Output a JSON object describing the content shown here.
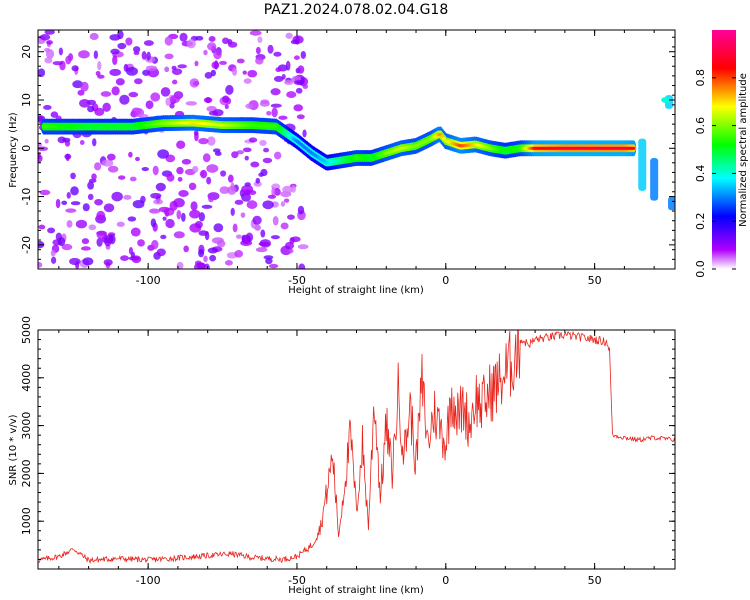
{
  "title": "PAZ1.2024.078.02.04.G18",
  "chart_data": [
    {
      "type": "heatmap",
      "xlabel": "Height of straight line (km)",
      "ylabel": "Frequency (Hz)",
      "xlim": [
        -137,
        77
      ],
      "ylim": [
        -25,
        24.5
      ],
      "xticks": [
        -100,
        -50,
        0,
        50
      ],
      "yticks": [
        -20,
        -10,
        0,
        10,
        20
      ],
      "colorbar": {
        "label": "Normalized spectral amplitude",
        "range": [
          0,
          1
        ],
        "ticks": [
          "0.0",
          "0.2",
          "0.4",
          "0.6",
          "0.8"
        ],
        "colormap": [
          "#ffffff",
          "#b000ff",
          "#0000ff",
          "#00ffff",
          "#00ff00",
          "#ffff00",
          "#ff0000",
          "#ff0099"
        ]
      },
      "ridge": {
        "height_km": [
          -135,
          -120,
          -105,
          -95,
          -85,
          -75,
          -65,
          -57,
          -50,
          -45,
          -40,
          -35,
          -30,
          -25,
          -20,
          -15,
          -10,
          -5,
          -2,
          0,
          5,
          10,
          15,
          20,
          25,
          30,
          40,
          50,
          60,
          63
        ],
        "frequency_hz": [
          4.5,
          4.5,
          4.5,
          5.2,
          5.3,
          4.8,
          4.8,
          4.5,
          1.5,
          -1.0,
          -3.0,
          -2.5,
          -2.0,
          -2.0,
          -1.0,
          0.0,
          0.5,
          2.0,
          3.0,
          1.5,
          0.5,
          0.8,
          0.0,
          -0.5,
          0.0,
          0.0,
          0.0,
          0.0,
          0.0,
          0.0
        ],
        "amplitude": [
          0.55,
          0.5,
          0.5,
          0.6,
          0.7,
          0.65,
          0.55,
          0.55,
          0.3,
          0.3,
          0.35,
          0.45,
          0.55,
          0.5,
          0.6,
          0.65,
          0.6,
          0.6,
          0.75,
          0.65,
          0.8,
          0.7,
          0.6,
          0.5,
          0.55,
          0.85,
          0.9,
          0.9,
          0.9,
          0.85
        ]
      }
    },
    {
      "type": "line",
      "xlabel": "Height of straight line (km)",
      "ylabel": "SNR (10 * v/v)",
      "xlim": [
        -137,
        77
      ],
      "ylim": [
        0,
        5000
      ],
      "xticks": [
        -100,
        -50,
        0,
        50
      ],
      "yticks": [
        1000,
        2000,
        3000,
        4000,
        5000
      ],
      "color": "#e8231b",
      "series": [
        {
          "x": [
            -137,
            -130,
            -125,
            -120,
            -110,
            -100,
            -90,
            -80,
            -72,
            -65,
            -55,
            -50,
            -45,
            -42,
            -40,
            -38,
            -36,
            -34,
            -32,
            -30,
            -28,
            -26,
            -24,
            -22,
            -20,
            -18,
            -16,
            -14,
            -12,
            -10,
            -8,
            -6,
            -4,
            -2,
            0,
            2,
            4,
            6,
            8,
            10,
            12,
            15,
            18,
            20,
            22,
            25,
            28,
            30,
            35,
            40,
            45,
            50,
            54,
            55,
            56,
            60,
            65,
            70,
            77
          ],
          "y": [
            180,
            260,
            420,
            180,
            220,
            190,
            230,
            280,
            320,
            240,
            200,
            260,
            500,
            900,
            1600,
            2400,
            700,
            1800,
            2800,
            1200,
            2600,
            900,
            3600,
            1500,
            3000,
            2000,
            3700,
            2400,
            3400,
            2200,
            3900,
            2600,
            3300,
            3000,
            2600,
            3700,
            3200,
            3400,
            3000,
            3600,
            3400,
            3700,
            3900,
            4100,
            4300,
            4800,
            4700,
            4800,
            4850,
            4900,
            4850,
            4800,
            4750,
            4600,
            2800,
            2750,
            2700,
            2750,
            2700
          ]
        }
      ]
    }
  ]
}
